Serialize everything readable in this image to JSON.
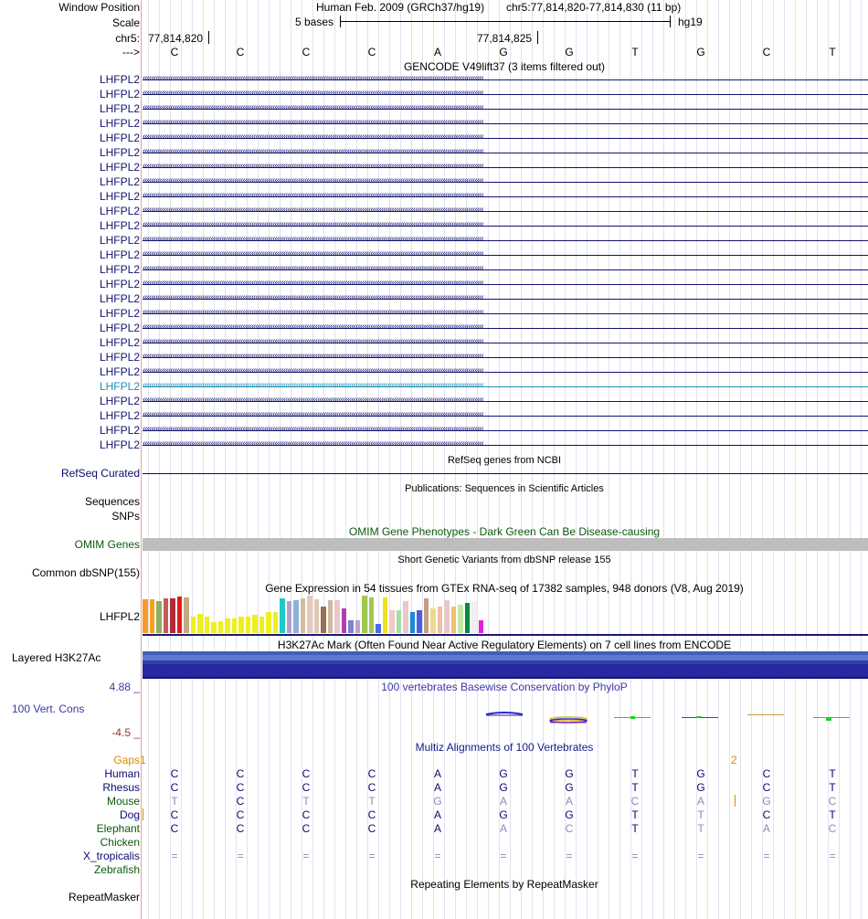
{
  "header": {
    "window_position_label": "Window Position",
    "assembly": "Human Feb. 2009 (GRCh37/hg19)",
    "position": "chr5:77,814,820-77,814,830 (11 bp)",
    "scale_label": "Scale",
    "scale_text": "5 bases",
    "scale_db": "hg19",
    "chrom_label": "chr5:",
    "coord_left": "77,814,820",
    "coord_mid": "77,814,825",
    "strand_label": "--->"
  },
  "bases": [
    "C",
    "C",
    "C",
    "C",
    "A",
    "G",
    "G",
    "T",
    "G",
    "C",
    "T"
  ],
  "gencode": {
    "title": "GENCODE V49lift37 (3 items filtered out)",
    "gene_name": "LHFPL2",
    "row_count": 26,
    "highlight_row": 21,
    "color": "#12126e",
    "highlight_color": "#1e8fb4"
  },
  "refseq": {
    "title": "RefSeq genes from NCBI",
    "label": "RefSeq Curated"
  },
  "pubs": {
    "title": "Publications: Sequences in Scientific Articles",
    "label_sequences": "Sequences",
    "label_snps": "SNPs"
  },
  "omim": {
    "title": "OMIM Gene Phenotypes - Dark Green Can Be Disease-causing",
    "label": "OMIM Genes"
  },
  "dbsnp": {
    "title": "Short Genetic Variants from dbSNP release 155",
    "label": "Common dbSNP(155)"
  },
  "gtex": {
    "title": "Gene Expression in 54 tissues from GTEx RNA-seq of 17382 samples, 948 donors (V8, Aug 2019)",
    "label": "LHFPL2",
    "bars": [
      {
        "v": 0.9,
        "c": "#f59a2c"
      },
      {
        "v": 0.9,
        "c": "#f5a020"
      },
      {
        "v": 0.85,
        "c": "#8fae62"
      },
      {
        "v": 0.92,
        "c": "#c55a5a"
      },
      {
        "v": 0.92,
        "c": "#b22a3a"
      },
      {
        "v": 0.98,
        "c": "#e31b1b"
      },
      {
        "v": 0.95,
        "c": "#c8a882"
      },
      {
        "v": 0.45,
        "c": "#eeee22"
      },
      {
        "v": 0.5,
        "c": "#eeee22"
      },
      {
        "v": 0.45,
        "c": "#eeee22"
      },
      {
        "v": 0.3,
        "c": "#eeee22"
      },
      {
        "v": 0.32,
        "c": "#eeee22"
      },
      {
        "v": 0.4,
        "c": "#eeee22"
      },
      {
        "v": 0.4,
        "c": "#eeee22"
      },
      {
        "v": 0.45,
        "c": "#eeee22"
      },
      {
        "v": 0.45,
        "c": "#eeee22"
      },
      {
        "v": 0.48,
        "c": "#eeee22"
      },
      {
        "v": 0.45,
        "c": "#eeee22"
      },
      {
        "v": 0.55,
        "c": "#eeee22"
      },
      {
        "v": 0.55,
        "c": "#eeee22"
      },
      {
        "v": 0.92,
        "c": "#22c8c8"
      },
      {
        "v": 0.85,
        "c": "#b4a0d0"
      },
      {
        "v": 0.88,
        "c": "#8fb0d8"
      },
      {
        "v": 0.92,
        "c": "#d0c0a0"
      },
      {
        "v": 1.0,
        "c": "#e8c8b8"
      },
      {
        "v": 0.9,
        "c": "#dcc8b4"
      },
      {
        "v": 0.7,
        "c": "#9a7050"
      },
      {
        "v": 0.88,
        "c": "#d0b8a0"
      },
      {
        "v": 0.88,
        "c": "#e8c8c8"
      },
      {
        "v": 0.65,
        "c": "#b040b0"
      },
      {
        "v": 0.35,
        "c": "#8080d0"
      },
      {
        "v": 0.35,
        "c": "#c0a0c8"
      },
      {
        "v": 1.0,
        "c": "#a0c850"
      },
      {
        "v": 0.95,
        "c": "#a0c850"
      },
      {
        "v": 0.25,
        "c": "#4a6ee0"
      },
      {
        "v": 0.95,
        "c": "#f0e020"
      },
      {
        "v": 0.6,
        "c": "#f0c8c8"
      },
      {
        "v": 0.6,
        "c": "#a0e0a0"
      },
      {
        "v": 0.85,
        "c": "#e8c8c8"
      },
      {
        "v": 0.55,
        "c": "#1a88d8"
      },
      {
        "v": 0.6,
        "c": "#4a60d8"
      },
      {
        "v": 0.92,
        "c": "#c0a080"
      },
      {
        "v": 0.65,
        "c": "#f0d890"
      },
      {
        "v": 0.7,
        "c": "#f0c0a0"
      },
      {
        "v": 0.88,
        "c": "#e8c8c8"
      },
      {
        "v": 0.7,
        "c": "#f0c070"
      },
      {
        "v": 0.75,
        "c": "#c0e8a8"
      },
      {
        "v": 0.8,
        "c": "#088a38"
      },
      {
        "v": 0.85,
        "c": "#f0f0f0"
      },
      {
        "v": 0.35,
        "c": "#e020e0"
      }
    ]
  },
  "h3k27ac": {
    "title": "H3K27Ac Mark (Often Found Near Active Regulatory Elements) on 7 cell lines from ENCODE",
    "label": "Layered H3K27Ac"
  },
  "phylop": {
    "title": "100 vertebrates Basewise Conservation by PhyloP",
    "label": "100 Vert. Cons",
    "max": "4.88 _",
    "min": "-4.5 _"
  },
  "multiz": {
    "title": "Multiz Alignments of 100 Vertebrates",
    "gaps_label": "Gaps",
    "gap_counts": [
      "1",
      "2"
    ],
    "species": [
      {
        "name": "Human",
        "color": "navy",
        "bases": [
          "C",
          "C",
          "C",
          "C",
          "A",
          "G",
          "G",
          "T",
          "G",
          "C",
          "T"
        ],
        "dim": []
      },
      {
        "name": "Rhesus",
        "color": "navy",
        "bases": [
          "C",
          "C",
          "C",
          "C",
          "A",
          "G",
          "G",
          "T",
          "G",
          "C",
          "T"
        ],
        "dim": []
      },
      {
        "name": "Mouse",
        "color": "green",
        "bases": [
          "T",
          "C",
          "T",
          "T",
          "G",
          "A",
          "A",
          "C",
          "A",
          "G",
          "C"
        ],
        "dim": [
          0,
          2,
          3,
          4,
          5,
          6,
          7,
          8,
          9,
          10
        ]
      },
      {
        "name": "Dog",
        "color": "navy",
        "bases": [
          "C",
          "C",
          "C",
          "C",
          "A",
          "G",
          "G",
          "T",
          "T",
          "C",
          "T"
        ],
        "dim": [
          8
        ]
      },
      {
        "name": "Elephant",
        "color": "green",
        "bases": [
          "C",
          "C",
          "C",
          "C",
          "A",
          "A",
          "C",
          "T",
          "T",
          "A",
          "C"
        ],
        "dim": [
          5,
          6,
          8,
          9,
          10
        ]
      },
      {
        "name": "Chicken",
        "color": "green",
        "bases": [],
        "dim": []
      },
      {
        "name": "X_tropicalis",
        "color": "navy",
        "bases": [
          "=",
          "=",
          "=",
          "=",
          "=",
          "=",
          "=",
          "=",
          "=",
          "=",
          "="
        ],
        "dim": [
          0,
          1,
          2,
          3,
          4,
          5,
          6,
          7,
          8,
          9,
          10
        ]
      },
      {
        "name": "Zebrafish",
        "color": "green",
        "bases": [],
        "dim": []
      }
    ]
  },
  "repeatmasker": {
    "title": "Repeating Elements by RepeatMasker",
    "label": "RepeatMasker"
  }
}
